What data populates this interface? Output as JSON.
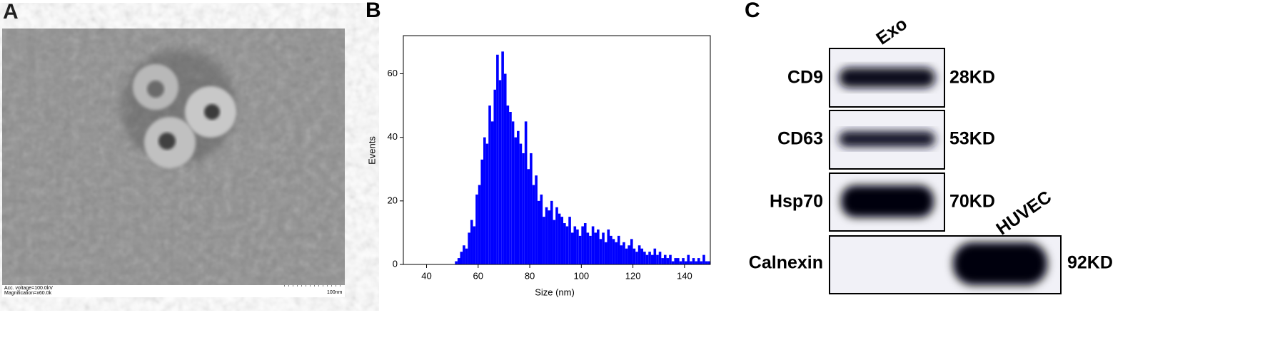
{
  "panel_labels": [
    "A",
    "B",
    "C"
  ],
  "em_image": {
    "voltage": "Acc. voltage=100.0kV",
    "magnification": "Magnification=x60.0k",
    "scale_bar": "100nm"
  },
  "blot": {
    "lanes": [
      "Exo",
      "HUVEC"
    ],
    "rows": [
      {
        "protein": "CD9",
        "weight": "28KD"
      },
      {
        "protein": "CD63",
        "weight": "53KD"
      },
      {
        "protein": "Hsp70",
        "weight": "70KD"
      },
      {
        "protein": "Calnexin",
        "weight": "92KD"
      }
    ]
  },
  "chart_data": {
    "type": "histogram",
    "color": "#0000ff",
    "x_label": "Size (nm)",
    "y_label": "Events",
    "bins": [
      50,
      51,
      52,
      53,
      54,
      55,
      56,
      57,
      58,
      59,
      60,
      61,
      62,
      63,
      64,
      65,
      66,
      67,
      68,
      69,
      70,
      71,
      72,
      73,
      74,
      75,
      76,
      77,
      78,
      79,
      80,
      81,
      82,
      83,
      84,
      85,
      86,
      87,
      88,
      89,
      90,
      91,
      92,
      93,
      94,
      95,
      96,
      97,
      98,
      99,
      100,
      101,
      102,
      103,
      104,
      105,
      106,
      107,
      108,
      109,
      110,
      111,
      112,
      113,
      114,
      115,
      116,
      117,
      118,
      119,
      120,
      121,
      122,
      123,
      124,
      125,
      126,
      127,
      128,
      129,
      130,
      131,
      132,
      133,
      134,
      135,
      136,
      137,
      138,
      139,
      140,
      141,
      142,
      143,
      144,
      145,
      146,
      147,
      148,
      149,
      150
    ],
    "counts": [
      0,
      1,
      2,
      4,
      6,
      5,
      10,
      14,
      12,
      22,
      25,
      33,
      40,
      38,
      50,
      45,
      55,
      66,
      58,
      67,
      60,
      50,
      48,
      45,
      40,
      42,
      38,
      35,
      45,
      30,
      35,
      25,
      28,
      20,
      22,
      15,
      18,
      17,
      20,
      14,
      18,
      16,
      15,
      13,
      12,
      15,
      10,
      12,
      11,
      9,
      12,
      13,
      10,
      9,
      12,
      10,
      11,
      8,
      10,
      7,
      11,
      9,
      8,
      7,
      9,
      6,
      7,
      5,
      6,
      8,
      5,
      4,
      6,
      5,
      4,
      3,
      4,
      3,
      5,
      3,
      4,
      2,
      3,
      2,
      3,
      1,
      2,
      2,
      1,
      2,
      1,
      3,
      1,
      2,
      1,
      2,
      1,
      3,
      1,
      1
    ],
    "xlim": [
      31,
      150
    ],
    "ylim": [
      0,
      72
    ],
    "xticks": [
      40,
      60,
      80,
      100,
      120,
      140
    ],
    "yticks": [
      0,
      20,
      40,
      60
    ]
  }
}
